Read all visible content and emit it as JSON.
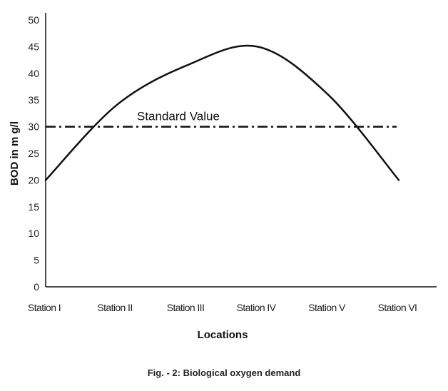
{
  "chart_data": {
    "type": "line",
    "categories": [
      "Station I",
      "Station II",
      "Station III",
      "Station IV",
      "Station V",
      "Station VI"
    ],
    "series": [
      {
        "values": [
          20,
          34,
          41.5,
          45,
          36,
          20
        ],
        "color": "#111111"
      }
    ],
    "reference_line": {
      "value": 30,
      "label": "Standard Value",
      "style": "dash-dot",
      "color": "#111111"
    },
    "xlabel": "Locations",
    "ylabel": "BOD in m g/l",
    "ylim": [
      0,
      50
    ],
    "yticks": [
      0,
      5,
      10,
      15,
      20,
      25,
      30,
      35,
      40,
      45,
      50
    ],
    "grid": false,
    "legend": "none"
  },
  "caption": "Fig. - 2: Biological oxygen demand"
}
